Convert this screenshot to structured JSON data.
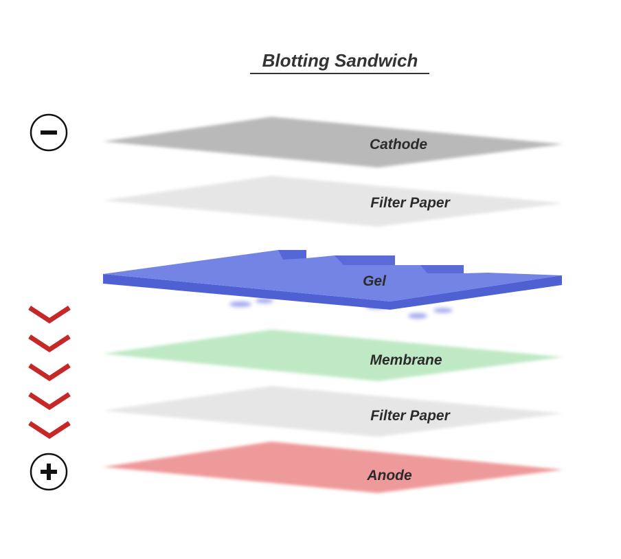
{
  "title": "Blotting Sandwich",
  "layers": [
    {
      "label": "Cathode",
      "color": "#b9b9b9"
    },
    {
      "label": "Filter Paper",
      "color": "#e6e6e6"
    },
    {
      "label": "Gel",
      "color": "#6474e0"
    },
    {
      "label": "Membrane",
      "color": "#bfe9c4"
    },
    {
      "label": "Filter Paper",
      "color": "#e6e6e6"
    },
    {
      "label": "Anode",
      "color": "#ef9a9a"
    }
  ],
  "electrodes": {
    "negative_symbol": "−",
    "positive_symbol": "+"
  },
  "transfer_arrows": {
    "count": 5,
    "color": "#c62828",
    "icon": "chevron-down-icon"
  }
}
